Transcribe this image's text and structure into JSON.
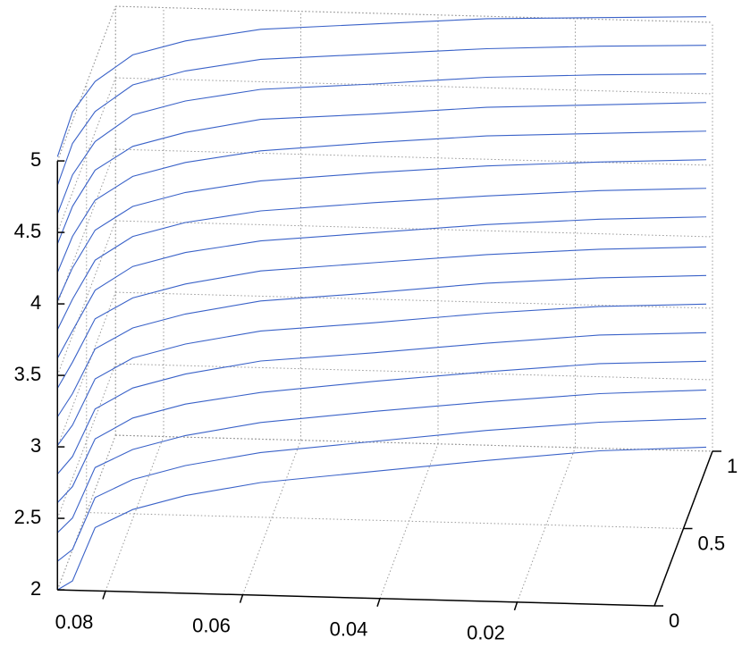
{
  "chart_data": {
    "type": "mesh3d",
    "color": "#3a62c8",
    "grid": true,
    "xlim": [
      0,
      0.087
    ],
    "ylim": [
      0,
      1
    ],
    "zlim": [
      2,
      5
    ],
    "xticks": [
      0.08,
      0.06,
      0.04,
      0.02
    ],
    "yticks": [
      0,
      0.5,
      1
    ],
    "zticks": [
      2,
      2.5,
      3,
      3.5,
      4,
      4.5,
      5
    ],
    "x": [
      0.087,
      0.085,
      0.082,
      0.077,
      0.07,
      0.06,
      0.045,
      0.03,
      0.015,
      0
    ],
    "y": [
      0,
      0.023,
      0.057,
      0.115,
      0.195,
      0.31,
      0.483,
      0.655,
      0.828,
      1
    ],
    "series": [
      {
        "values": [
          2.0,
          2.04,
          2.38,
          2.45,
          2.47,
          2.45,
          2.36,
          2.27,
          2.17,
          2.03
        ]
      },
      {
        "values": [
          2.2,
          2.26,
          2.59,
          2.66,
          2.68,
          2.66,
          2.57,
          2.48,
          2.37,
          2.23
        ]
      },
      {
        "values": [
          2.4,
          2.48,
          2.8,
          2.87,
          2.89,
          2.87,
          2.78,
          2.68,
          2.57,
          2.43
        ]
      },
      {
        "values": [
          2.61,
          2.7,
          3.0,
          3.09,
          3.11,
          3.08,
          2.99,
          2.89,
          2.78,
          2.63
        ]
      },
      {
        "values": [
          2.81,
          2.91,
          3.21,
          3.3,
          3.32,
          3.3,
          3.19,
          3.09,
          2.98,
          2.83
        ]
      },
      {
        "values": [
          3.01,
          3.13,
          3.42,
          3.51,
          3.53,
          3.51,
          3.4,
          3.3,
          3.18,
          3.03
        ]
      },
      {
        "values": [
          3.21,
          3.35,
          3.63,
          3.72,
          3.74,
          3.72,
          3.61,
          3.51,
          3.38,
          3.23
        ]
      },
      {
        "values": [
          3.41,
          3.57,
          3.84,
          3.93,
          3.95,
          3.93,
          3.82,
          3.71,
          3.58,
          3.43
        ]
      },
      {
        "values": [
          3.62,
          3.79,
          4.04,
          4.15,
          4.17,
          4.14,
          4.03,
          3.92,
          3.79,
          3.64
        ]
      },
      {
        "values": [
          3.82,
          4.01,
          4.25,
          4.36,
          4.38,
          4.35,
          4.24,
          4.12,
          3.99,
          3.84
        ]
      },
      {
        "values": [
          4.02,
          4.23,
          4.46,
          4.57,
          4.59,
          4.56,
          4.45,
          4.33,
          4.19,
          4.04
        ]
      },
      {
        "values": [
          4.22,
          4.45,
          4.67,
          4.78,
          4.8,
          4.77,
          4.66,
          4.54,
          4.39,
          4.24
        ]
      },
      {
        "values": [
          4.42,
          4.66,
          4.88,
          4.99,
          5.01,
          4.99,
          4.86,
          4.74,
          4.59,
          4.44
        ]
      },
      {
        "values": [
          4.63,
          4.88,
          5.08,
          5.21,
          5.23,
          5.2,
          5.07,
          4.95,
          4.8,
          4.64
        ]
      },
      {
        "values": [
          4.83,
          5.1,
          5.29,
          5.42,
          5.44,
          5.41,
          5.28,
          5.15,
          5.0,
          4.84
        ]
      },
      {
        "values": [
          5.03,
          5.32,
          5.5,
          5.63,
          5.65,
          5.62,
          5.49,
          5.36,
          5.2,
          5.04
        ]
      }
    ]
  }
}
